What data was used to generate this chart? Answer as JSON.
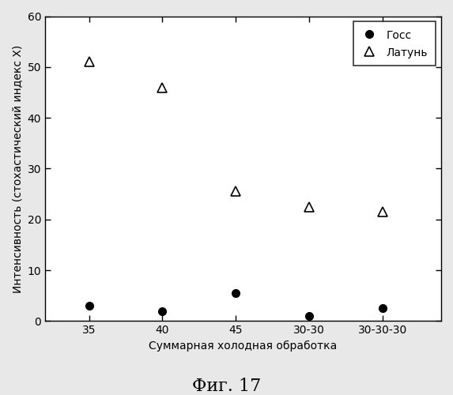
{
  "x_labels": [
    "35",
    "40",
    "45",
    "30-30",
    "30-30-30"
  ],
  "x_positions": [
    1,
    2,
    3,
    4,
    5
  ],
  "goss_values": [
    3.0,
    2.0,
    5.5,
    1.0,
    2.5
  ],
  "brass_values": [
    51.0,
    46.0,
    25.5,
    22.5,
    21.5
  ],
  "ylabel": "Интенсивность (стохастический индекс X)",
  "xlabel": "Суммарная холодная обработка",
  "legend_goss": "Госс",
  "legend_brass": "Латунь",
  "caption": "Фиг. 17",
  "ylim": [
    0,
    60
  ],
  "yticks": [
    0,
    10,
    20,
    30,
    40,
    50,
    60
  ],
  "background_color": "#e8e8e8",
  "plot_bg_color": "#ffffff",
  "marker_color": "#000000"
}
